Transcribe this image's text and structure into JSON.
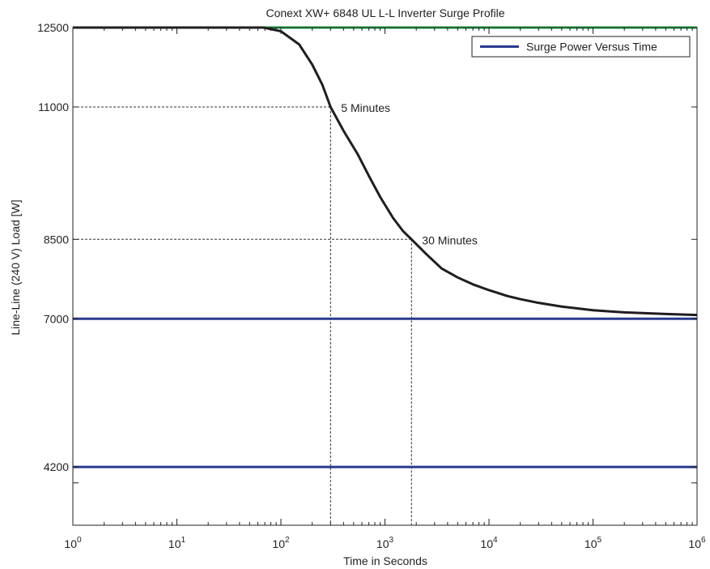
{
  "chart_data": {
    "type": "line",
    "title": "Conext XW+ 6848 UL L-L Inverter Surge Profile",
    "xlabel": "Time in Seconds",
    "ylabel": "Line-Line (240 V) Load [W]",
    "xscale": "log",
    "xlim": [
      1,
      1000000
    ],
    "ylim": [
      3100,
      12500
    ],
    "x_ticks": [
      {
        "base": "10",
        "exp": "0",
        "value": 1
      },
      {
        "base": "10",
        "exp": "1",
        "value": 10
      },
      {
        "base": "10",
        "exp": "2",
        "value": 100
      },
      {
        "base": "10",
        "exp": "3",
        "value": 1000
      },
      {
        "base": "10",
        "exp": "4",
        "value": 10000
      },
      {
        "base": "10",
        "exp": "5",
        "value": 100000
      },
      {
        "base": "10",
        "exp": "6",
        "value": 1000000
      }
    ],
    "y_ticks": [
      {
        "label": "12500",
        "value": 12500
      },
      {
        "label": "11000",
        "value": 11000
      },
      {
        "label": "8500",
        "value": 8500
      },
      {
        "label": "7000",
        "value": 7000
      },
      {
        "label": "4200",
        "value": 4200
      }
    ],
    "y_minor_ticks": [
      3900
    ],
    "grid": false,
    "legend_position": "top-right",
    "legend": [
      {
        "label": "Surge Power Versus Time",
        "color": "#2b3990"
      }
    ],
    "series": [
      {
        "name": "Surge Power Versus Time",
        "color": "#1e1e1e",
        "x": [
          1,
          68,
          100,
          150,
          200,
          250,
          300,
          400,
          550,
          700,
          900,
          1200,
          1500,
          1800,
          2500,
          3500,
          5000,
          7000,
          10000,
          15000,
          20000,
          30000,
          50000,
          100000,
          200000,
          500000,
          1000000
        ],
        "y": [
          12500,
          12500,
          12430,
          12180,
          11800,
          11420,
          11000,
          10550,
          10100,
          9700,
          9300,
          8900,
          8650,
          8500,
          8220,
          7950,
          7780,
          7650,
          7540,
          7430,
          7370,
          7300,
          7230,
          7160,
          7120,
          7090,
          7070
        ]
      },
      {
        "color": "#2b3990",
        "x": [
          1,
          1000000
        ],
        "y": [
          7000,
          7000
        ]
      },
      {
        "color": "#2b3990",
        "x": [
          1,
          1000000
        ],
        "y": [
          4200,
          4200
        ]
      },
      {
        "color": "#1aaa4a",
        "x": [
          68,
          1000000
        ],
        "y": [
          12500,
          12500
        ]
      }
    ],
    "annotations": [
      {
        "text": "5 Minutes",
        "x": 300,
        "y": 11000
      },
      {
        "text": "30 Minutes",
        "x": 1800,
        "y": 8500
      }
    ],
    "reference_lines": [
      {
        "x": 300,
        "y": 11000
      },
      {
        "x": 1800,
        "y": 8500
      }
    ]
  }
}
